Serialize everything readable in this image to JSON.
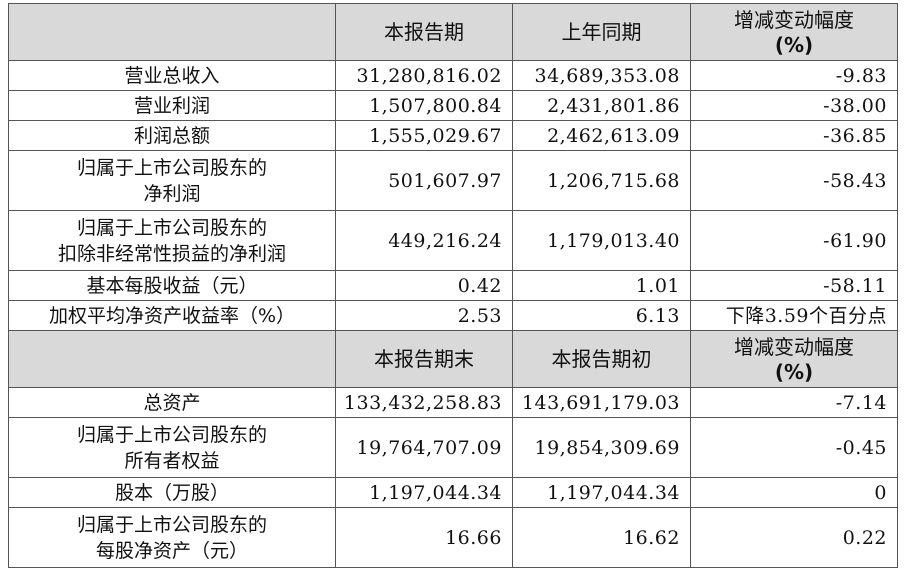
{
  "header1": {
    "col1": "",
    "col2": "本报告期",
    "col3": "上年同期",
    "col4": "增减变动幅度",
    "col4_unit": "(%)"
  },
  "rows1": [
    {
      "label": [
        "营业总收入"
      ],
      "current": "31,280,816.02",
      "prior": "34,689,353.08",
      "change": "-9.83"
    },
    {
      "label": [
        "营业利润"
      ],
      "current": "1,507,800.84",
      "prior": "2,431,801.86",
      "change": "-38.00"
    },
    {
      "label": [
        "利润总额"
      ],
      "current": "1,555,029.67",
      "prior": "2,462,613.09",
      "change": "-36.85"
    },
    {
      "label": [
        "归属于上市公司股东的",
        "净利润"
      ],
      "current": "501,607.97",
      "prior": "1,206,715.68",
      "change": "-58.43"
    },
    {
      "label": [
        "归属于上市公司股东的",
        "扣除非经常性损益的净利润"
      ],
      "current": "449,216.24",
      "prior": "1,179,013.40",
      "change": "-61.90"
    },
    {
      "label": [
        "基本每股收益（元）"
      ],
      "current": "0.42",
      "prior": "1.01",
      "change": "-58.11"
    },
    {
      "label": [
        "加权平均净资产收益率（%）"
      ],
      "current": "2.53",
      "prior": "6.13",
      "change": "下降3.59个百分点"
    }
  ],
  "header2": {
    "col1": "",
    "col2": "本报告期末",
    "col3": "本报告期初",
    "col4": "增减变动幅度",
    "col4_unit": "(%)"
  },
  "rows2": [
    {
      "label": [
        "总资产"
      ],
      "current": "133,432,258.83",
      "prior": "143,691,179.03",
      "change": "-7.14"
    },
    {
      "label": [
        "归属于上市公司股东的",
        "所有者权益"
      ],
      "current": "19,764,707.09",
      "prior": "19,854,309.69",
      "change": "-0.45"
    },
    {
      "label": [
        "股本（万股）"
      ],
      "current": "1,197,044.34",
      "prior": "1,197,044.34",
      "change": "0"
    },
    {
      "label": [
        "归属于上市公司股东的",
        "每股净资产（元）"
      ],
      "current": "16.66",
      "prior": "16.62",
      "change": "0.22"
    }
  ]
}
